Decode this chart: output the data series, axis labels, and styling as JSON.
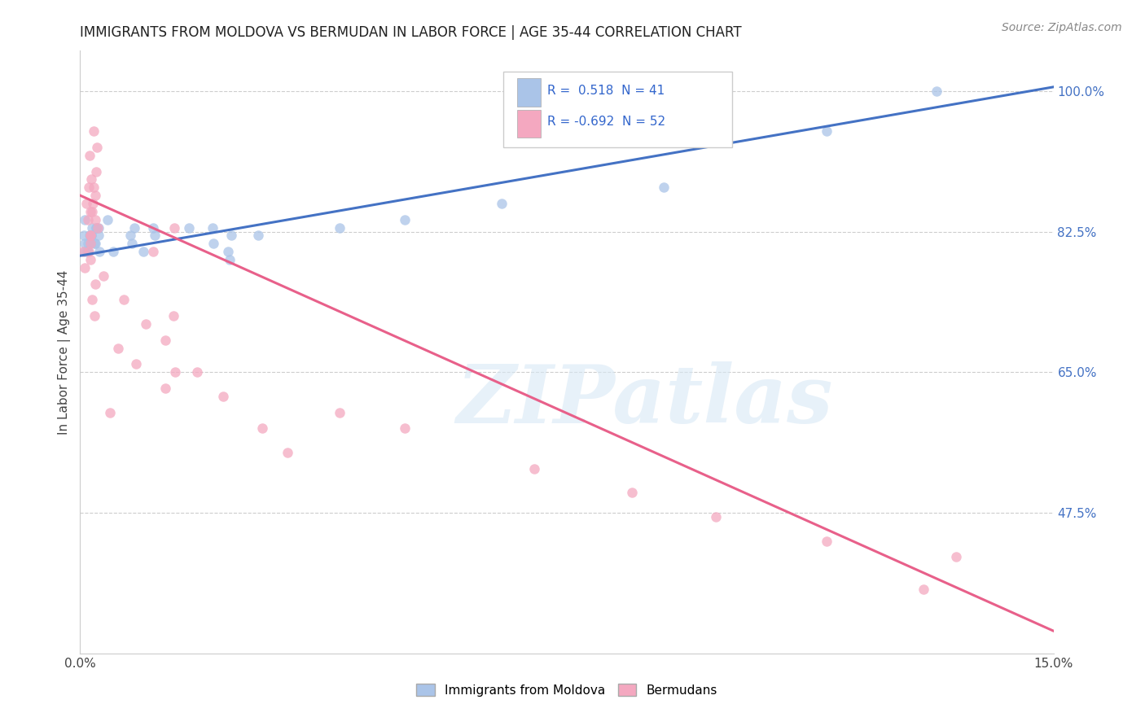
{
  "title": "IMMIGRANTS FROM MOLDOVA VS BERMUDAN IN LABOR FORCE | AGE 35-44 CORRELATION CHART",
  "source": "Source: ZipAtlas.com",
  "ylabel": "In Labor Force | Age 35-44",
  "xlim": [
    0.0,
    0.15
  ],
  "ylim": [
    0.3,
    1.05
  ],
  "xticks": [
    0.0,
    0.05,
    0.1,
    0.15
  ],
  "xticklabels": [
    "0.0%",
    "",
    "",
    "15.0%"
  ],
  "yticks": [
    0.475,
    0.65,
    0.825,
    1.0
  ],
  "yticklabels": [
    "47.5%",
    "65.0%",
    "82.5%",
    "100.0%"
  ],
  "moldova_R": 0.518,
  "moldova_N": 41,
  "bermuda_R": -0.692,
  "bermuda_N": 52,
  "moldova_color": "#aac4e8",
  "bermuda_color": "#f4a8c0",
  "moldova_line_color": "#4472c4",
  "bermuda_line_color": "#e8608a",
  "grid_color": "#c8c8c8",
  "background_color": "#ffffff",
  "moldova_line_x0": 0.0,
  "moldova_line_y0": 0.795,
  "moldova_line_x1": 0.15,
  "moldova_line_y1": 1.005,
  "bermuda_line_x0": 0.0,
  "bermuda_line_y0": 0.87,
  "bermuda_line_x1": 0.15,
  "bermuda_line_y1": 0.328,
  "title_fontsize": 12,
  "label_fontsize": 11,
  "tick_fontsize": 11,
  "legend_fontsize": 12,
  "source_fontsize": 10,
  "marker_size": 9,
  "line_width": 2.2,
  "watermark_text": "ZIPatlas",
  "watermark_fontsize": 72
}
